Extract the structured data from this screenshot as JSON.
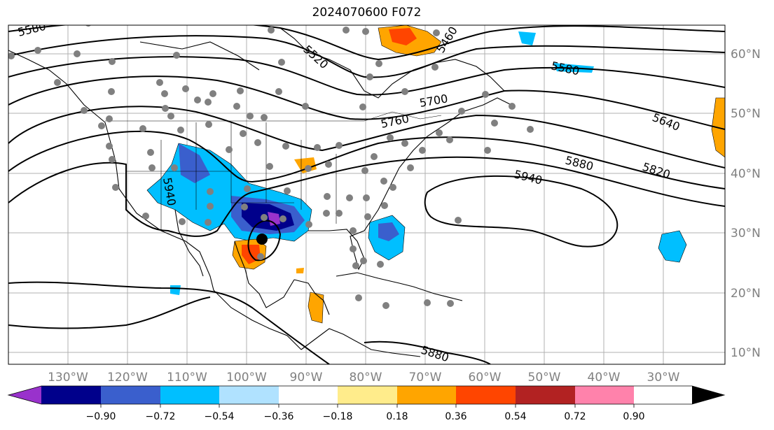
{
  "title": "2024070600 F072",
  "lat_labels": [
    "60°N",
    "50°N",
    "40°N",
    "30°N",
    "20°N",
    "10°N"
  ],
  "lon_labels": [
    "130°W",
    "120°W",
    "110°W",
    "100°W",
    "90°W",
    "80°W",
    "70°W",
    "60°W",
    "50°W",
    "40°W",
    "30°W"
  ],
  "contour_labels": [
    "5580",
    "5520",
    "5460",
    "5580",
    "5700",
    "5760",
    "5640",
    "5880",
    "5820",
    "5940",
    "5940",
    "5880"
  ],
  "colorbar": {
    "tick_labels": [
      "−0.90",
      "−0.72",
      "−0.54",
      "−0.36",
      "−0.18",
      "0.18",
      "0.36",
      "0.54",
      "0.72",
      "0.90"
    ],
    "colors": [
      "#9932cc",
      "#00008b",
      "#3a5fcd",
      "#00bfff",
      "#b0e2ff",
      "#ffffff",
      "#ffec8b",
      "#ffa500",
      "#ff4500",
      "#b22222",
      "#ff82ab"
    ]
  },
  "colors": {
    "station_marker": "#808080",
    "center_marker": "#000000",
    "grid": "#b0b0b0"
  }
}
